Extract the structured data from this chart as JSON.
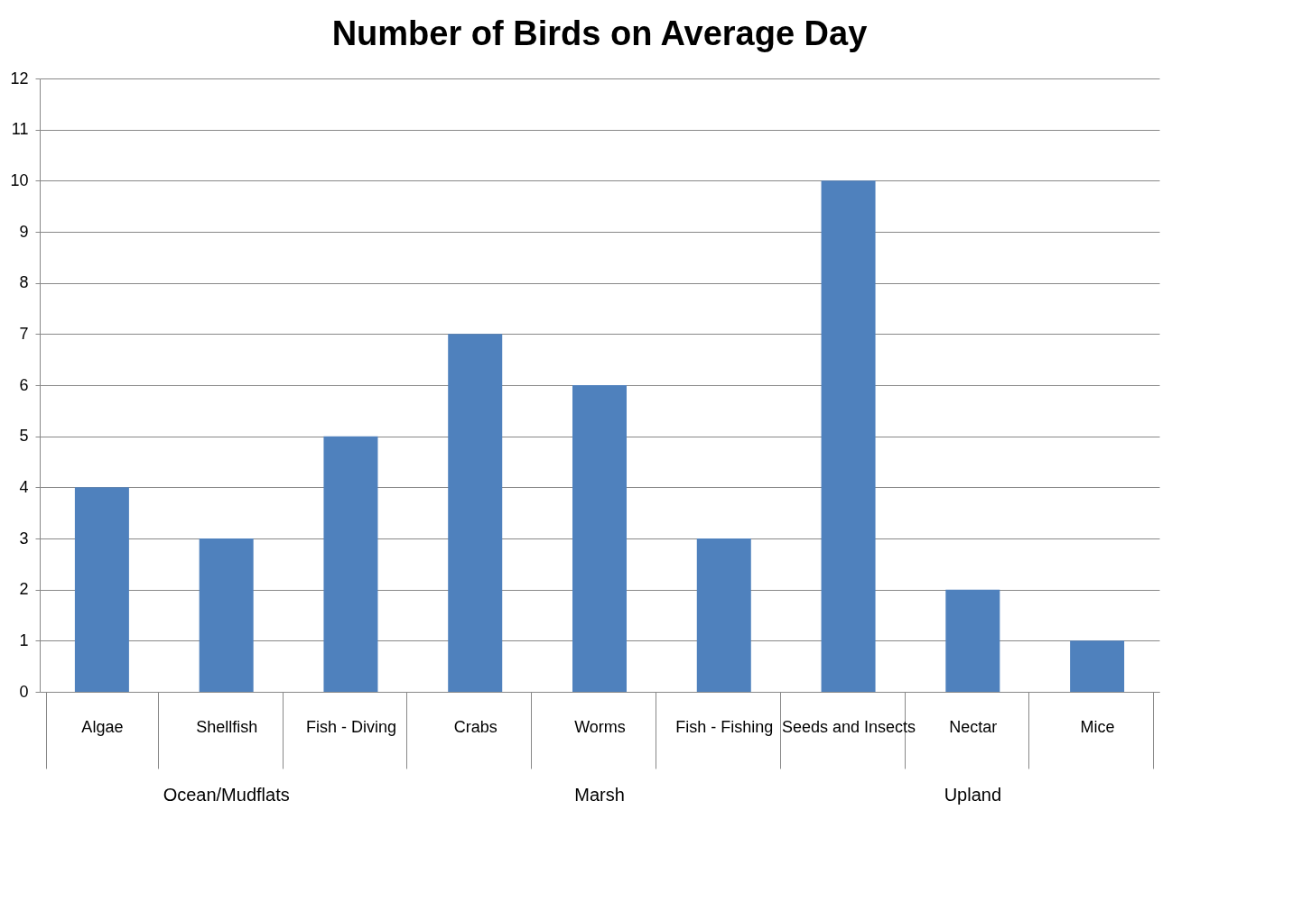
{
  "chart_data": {
    "type": "bar",
    "title": "Number of Birds on Average Day",
    "categories": [
      "Algae",
      "Shellfish",
      "Fish - Diving",
      "Crabs",
      "Worms",
      "Fish - Fishing",
      "Seeds and Insects",
      "Nectar",
      "Mice"
    ],
    "values": [
      4,
      3,
      5,
      7,
      6,
      3,
      10,
      2,
      1
    ],
    "color": "#4f81bd",
    "ylim": [
      0,
      12
    ],
    "yticks": [
      0,
      1,
      2,
      3,
      4,
      5,
      6,
      7,
      8,
      9,
      10,
      11,
      12
    ],
    "grid": "y",
    "annotations": [
      "Ocean/Mudflats",
      "Marsh",
      "Upland"
    ]
  }
}
